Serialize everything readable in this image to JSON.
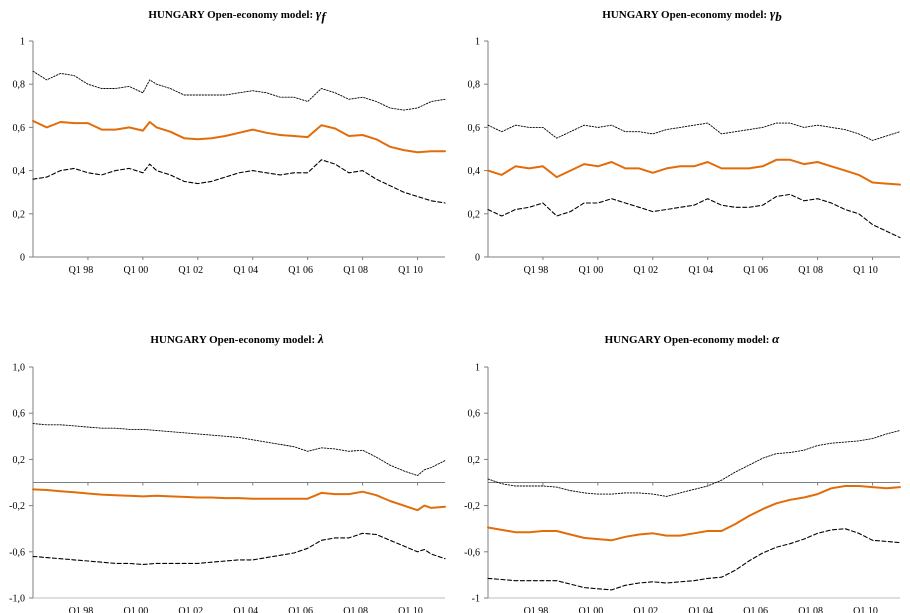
{
  "colors": {
    "central": "#E36C0A",
    "bands": "#000000",
    "axis": "#7F7F7F"
  },
  "chart_data": [
    {
      "type": "line",
      "title": "HUNGARY Open-economy model: ",
      "title_symbol": "γ",
      "title_subscript": "f",
      "x_tick_labels": [
        "Q1 98",
        "Q1 00",
        "Q1 02",
        "Q1 04",
        "Q1 06",
        "Q1 08",
        "Q1 10"
      ],
      "x_range": [
        1996.0,
        2011.0
      ],
      "x_ticks": [
        1998,
        2000,
        2002,
        2004,
        2006,
        2008,
        2010
      ],
      "y_range": [
        0,
        1
      ],
      "y_ticks": [
        0,
        0.2,
        0.4,
        0.6,
        0.8,
        1
      ],
      "y_tick_labels": [
        "0",
        "0,2",
        "0,4",
        "0,6",
        "0,8",
        "1"
      ],
      "zero_line": false,
      "series": [
        {
          "style": "central",
          "x": [
            1996.0,
            1996.5,
            1997.0,
            1997.5,
            1998.0,
            1998.5,
            1999.0,
            1999.5,
            2000.0,
            2000.25,
            2000.5,
            2001.0,
            2001.5,
            2002.0,
            2002.5,
            2003.0,
            2003.5,
            2004.0,
            2004.5,
            2005.0,
            2005.5,
            2006.0,
            2006.5,
            2007.0,
            2007.5,
            2008.0,
            2008.5,
            2009.0,
            2009.5,
            2010.0,
            2010.5,
            2011.0
          ],
          "y": [
            0.63,
            0.6,
            0.625,
            0.62,
            0.62,
            0.59,
            0.59,
            0.6,
            0.585,
            0.625,
            0.6,
            0.58,
            0.55,
            0.545,
            0.55,
            0.56,
            0.575,
            0.59,
            0.575,
            0.565,
            0.56,
            0.555,
            0.61,
            0.595,
            0.56,
            0.565,
            0.545,
            0.51,
            0.495,
            0.485,
            0.49,
            0.49
          ]
        },
        {
          "style": "upper",
          "x": [
            1996.0,
            1996.5,
            1997.0,
            1997.5,
            1998.0,
            1998.5,
            1999.0,
            1999.5,
            2000.0,
            2000.25,
            2000.5,
            2001.0,
            2001.5,
            2002.0,
            2002.5,
            2003.0,
            2003.5,
            2004.0,
            2004.5,
            2005.0,
            2005.5,
            2006.0,
            2006.5,
            2007.0,
            2007.5,
            2008.0,
            2008.5,
            2009.0,
            2009.5,
            2010.0,
            2010.5,
            2011.0
          ],
          "y": [
            0.86,
            0.82,
            0.85,
            0.84,
            0.8,
            0.78,
            0.78,
            0.79,
            0.76,
            0.82,
            0.8,
            0.78,
            0.75,
            0.75,
            0.75,
            0.75,
            0.76,
            0.77,
            0.76,
            0.74,
            0.74,
            0.72,
            0.78,
            0.76,
            0.73,
            0.74,
            0.72,
            0.69,
            0.68,
            0.69,
            0.72,
            0.73
          ]
        },
        {
          "style": "lower",
          "x": [
            1996.0,
            1996.5,
            1997.0,
            1997.5,
            1998.0,
            1998.5,
            1999.0,
            1999.5,
            2000.0,
            2000.25,
            2000.5,
            2001.0,
            2001.5,
            2002.0,
            2002.5,
            2003.0,
            2003.5,
            2004.0,
            2004.5,
            2005.0,
            2005.5,
            2006.0,
            2006.5,
            2007.0,
            2007.5,
            2008.0,
            2008.5,
            2009.0,
            2009.5,
            2010.0,
            2010.5,
            2011.0
          ],
          "y": [
            0.36,
            0.37,
            0.4,
            0.41,
            0.39,
            0.38,
            0.4,
            0.41,
            0.39,
            0.43,
            0.4,
            0.38,
            0.35,
            0.34,
            0.35,
            0.37,
            0.39,
            0.4,
            0.39,
            0.38,
            0.39,
            0.39,
            0.45,
            0.43,
            0.39,
            0.4,
            0.36,
            0.33,
            0.3,
            0.28,
            0.26,
            0.25
          ]
        }
      ]
    },
    {
      "type": "line",
      "title": "HUNGARY Open-economy model: ",
      "title_symbol": "γ",
      "title_subscript": "b",
      "x_tick_labels": [
        "Q1 98",
        "Q1 00",
        "Q1 02",
        "Q1 04",
        "Q1 06",
        "Q1 08",
        "Q1 10"
      ],
      "x_range": [
        1996.0,
        2011.0
      ],
      "x_ticks": [
        1998,
        2000,
        2002,
        2004,
        2006,
        2008,
        2010
      ],
      "y_range": [
        0,
        1
      ],
      "y_ticks": [
        0,
        0.2,
        0.4,
        0.6,
        0.8,
        1
      ],
      "y_tick_labels": [
        "0",
        "0,2",
        "0,4",
        "0,6",
        "0,8",
        "1"
      ],
      "zero_line": false,
      "series": [
        {
          "style": "central",
          "x": [
            1996.0,
            1996.5,
            1997.0,
            1997.5,
            1998.0,
            1998.5,
            1999.0,
            1999.5,
            2000.0,
            2000.5,
            2001.0,
            2001.5,
            2002.0,
            2002.5,
            2003.0,
            2003.5,
            2004.0,
            2004.5,
            2005.0,
            2005.5,
            2006.0,
            2006.5,
            2007.0,
            2007.5,
            2008.0,
            2008.5,
            2009.0,
            2009.5,
            2010.0,
            2010.5,
            2011.0
          ],
          "y": [
            0.4,
            0.38,
            0.42,
            0.41,
            0.42,
            0.37,
            0.4,
            0.43,
            0.42,
            0.44,
            0.41,
            0.41,
            0.39,
            0.41,
            0.42,
            0.42,
            0.44,
            0.41,
            0.41,
            0.41,
            0.42,
            0.45,
            0.45,
            0.43,
            0.44,
            0.42,
            0.4,
            0.38,
            0.345,
            0.34,
            0.335
          ]
        },
        {
          "style": "upper",
          "x": [
            1996.0,
            1996.5,
            1997.0,
            1997.5,
            1998.0,
            1998.5,
            1999.0,
            1999.5,
            2000.0,
            2000.5,
            2001.0,
            2001.5,
            2002.0,
            2002.5,
            2003.0,
            2003.5,
            2004.0,
            2004.5,
            2005.0,
            2005.5,
            2006.0,
            2006.5,
            2007.0,
            2007.5,
            2008.0,
            2008.5,
            2009.0,
            2009.5,
            2010.0,
            2010.5,
            2011.0
          ],
          "y": [
            0.61,
            0.58,
            0.61,
            0.6,
            0.6,
            0.55,
            0.58,
            0.61,
            0.6,
            0.61,
            0.58,
            0.58,
            0.57,
            0.59,
            0.6,
            0.61,
            0.62,
            0.57,
            0.58,
            0.59,
            0.6,
            0.62,
            0.62,
            0.6,
            0.61,
            0.6,
            0.59,
            0.57,
            0.54,
            0.56,
            0.58
          ]
        },
        {
          "style": "lower",
          "x": [
            1996.0,
            1996.5,
            1997.0,
            1997.5,
            1998.0,
            1998.5,
            1999.0,
            1999.5,
            2000.0,
            2000.5,
            2001.0,
            2001.5,
            2002.0,
            2002.5,
            2003.0,
            2003.5,
            2004.0,
            2004.5,
            2005.0,
            2005.5,
            2006.0,
            2006.5,
            2007.0,
            2007.5,
            2008.0,
            2008.5,
            2009.0,
            2009.5,
            2010.0,
            2010.5,
            2011.0
          ],
          "y": [
            0.22,
            0.19,
            0.22,
            0.23,
            0.25,
            0.19,
            0.21,
            0.25,
            0.25,
            0.27,
            0.25,
            0.23,
            0.21,
            0.22,
            0.23,
            0.24,
            0.27,
            0.24,
            0.23,
            0.23,
            0.24,
            0.28,
            0.29,
            0.26,
            0.27,
            0.25,
            0.22,
            0.2,
            0.15,
            0.12,
            0.09
          ]
        }
      ]
    },
    {
      "type": "line",
      "title": "HUNGARY Open-economy model: ",
      "title_symbol": "λ",
      "title_subscript": "",
      "x_tick_labels": [
        "Q1 98",
        "Q1 00",
        "Q1 02",
        "Q1 04",
        "Q1 06",
        "Q1 08",
        "Q1 10"
      ],
      "x_range": [
        1996.0,
        2011.0
      ],
      "x_ticks": [
        1998,
        2000,
        2002,
        2004,
        2006,
        2008,
        2010
      ],
      "y_range": [
        -1,
        1
      ],
      "y_ticks": [
        -1,
        -0.6,
        -0.2,
        0.2,
        0.6,
        1
      ],
      "y_tick_labels": [
        "-1,0",
        "-0,6",
        "-0,2",
        "0,2",
        "0,6",
        "1,0"
      ],
      "zero_line": true,
      "series": [
        {
          "style": "central",
          "x": [
            1996.0,
            1996.5,
            1997.0,
            1997.5,
            1998.0,
            1998.5,
            1999.0,
            1999.5,
            2000.0,
            2000.5,
            2001.0,
            2001.5,
            2002.0,
            2002.5,
            2003.0,
            2003.5,
            2004.0,
            2004.5,
            2005.0,
            2005.5,
            2006.0,
            2006.5,
            2007.0,
            2007.5,
            2008.0,
            2008.5,
            2009.0,
            2009.5,
            2010.0,
            2010.25,
            2010.5,
            2011.0
          ],
          "y": [
            -0.06,
            -0.065,
            -0.075,
            -0.085,
            -0.095,
            -0.105,
            -0.11,
            -0.115,
            -0.12,
            -0.115,
            -0.12,
            -0.125,
            -0.13,
            -0.13,
            -0.135,
            -0.135,
            -0.14,
            -0.14,
            -0.14,
            -0.14,
            -0.14,
            -0.09,
            -0.1,
            -0.1,
            -0.08,
            -0.11,
            -0.16,
            -0.2,
            -0.24,
            -0.2,
            -0.22,
            -0.21
          ]
        },
        {
          "style": "upper",
          "x": [
            1996.0,
            1996.5,
            1997.0,
            1997.5,
            1998.0,
            1998.5,
            1999.0,
            1999.5,
            2000.0,
            2000.5,
            2001.0,
            2001.5,
            2002.0,
            2002.5,
            2003.0,
            2003.5,
            2004.0,
            2004.5,
            2005.0,
            2005.5,
            2006.0,
            2006.5,
            2007.0,
            2007.5,
            2008.0,
            2008.5,
            2009.0,
            2009.5,
            2010.0,
            2010.25,
            2010.5,
            2011.0
          ],
          "y": [
            0.51,
            0.5,
            0.5,
            0.49,
            0.48,
            0.47,
            0.47,
            0.46,
            0.46,
            0.45,
            0.44,
            0.43,
            0.42,
            0.41,
            0.4,
            0.39,
            0.37,
            0.35,
            0.33,
            0.31,
            0.27,
            0.3,
            0.29,
            0.27,
            0.28,
            0.22,
            0.15,
            0.1,
            0.06,
            0.11,
            0.13,
            0.19
          ]
        },
        {
          "style": "lower",
          "x": [
            1996.0,
            1996.5,
            1997.0,
            1997.5,
            1998.0,
            1998.5,
            1999.0,
            1999.5,
            2000.0,
            2000.5,
            2001.0,
            2001.5,
            2002.0,
            2002.5,
            2003.0,
            2003.5,
            2004.0,
            2004.5,
            2005.0,
            2005.5,
            2006.0,
            2006.5,
            2007.0,
            2007.5,
            2008.0,
            2008.5,
            2009.0,
            2009.5,
            2010.0,
            2010.25,
            2010.5,
            2011.0
          ],
          "y": [
            -0.64,
            -0.65,
            -0.66,
            -0.67,
            -0.68,
            -0.69,
            -0.7,
            -0.7,
            -0.71,
            -0.7,
            -0.7,
            -0.7,
            -0.7,
            -0.69,
            -0.68,
            -0.67,
            -0.67,
            -0.65,
            -0.63,
            -0.61,
            -0.57,
            -0.5,
            -0.48,
            -0.48,
            -0.44,
            -0.45,
            -0.5,
            -0.55,
            -0.6,
            -0.58,
            -0.62,
            -0.66
          ]
        }
      ]
    },
    {
      "type": "line",
      "title": "HUNGARY Open-economy model: ",
      "title_symbol": "α",
      "title_subscript": "",
      "x_tick_labels": [
        "Q1 98",
        "Q1 00",
        "Q1 02",
        "Q1 04",
        "Q1 06",
        "Q1 08",
        "Q1 10"
      ],
      "x_range": [
        1996.0,
        2011.0
      ],
      "x_ticks": [
        1998,
        2000,
        2002,
        2004,
        2006,
        2008,
        2010
      ],
      "y_range": [
        -1,
        1
      ],
      "y_ticks": [
        -1,
        -0.6,
        -0.2,
        0.2,
        0.6,
        1
      ],
      "y_tick_labels": [
        "-1",
        "-0,6",
        "-0,2",
        "0,2",
        "0,6",
        "1"
      ],
      "zero_line": true,
      "series": [
        {
          "style": "central",
          "x": [
            1996.0,
            1996.5,
            1997.0,
            1997.5,
            1998.0,
            1998.5,
            1999.0,
            1999.5,
            2000.0,
            2000.5,
            2001.0,
            2001.5,
            2002.0,
            2002.5,
            2003.0,
            2003.5,
            2004.0,
            2004.5,
            2005.0,
            2005.5,
            2006.0,
            2006.5,
            2007.0,
            2007.5,
            2008.0,
            2008.5,
            2009.0,
            2009.5,
            2010.0,
            2010.5,
            2011.0
          ],
          "y": [
            -0.39,
            -0.41,
            -0.43,
            -0.43,
            -0.42,
            -0.42,
            -0.45,
            -0.48,
            -0.49,
            -0.5,
            -0.47,
            -0.45,
            -0.44,
            -0.46,
            -0.46,
            -0.44,
            -0.42,
            -0.42,
            -0.36,
            -0.29,
            -0.23,
            -0.18,
            -0.15,
            -0.13,
            -0.1,
            -0.05,
            -0.03,
            -0.03,
            -0.04,
            -0.05,
            -0.04
          ]
        },
        {
          "style": "upper",
          "x": [
            1996.0,
            1996.5,
            1997.0,
            1997.5,
            1998.0,
            1998.5,
            1999.0,
            1999.5,
            2000.0,
            2000.5,
            2001.0,
            2001.5,
            2002.0,
            2002.5,
            2003.0,
            2003.5,
            2004.0,
            2004.5,
            2005.0,
            2005.5,
            2006.0,
            2006.5,
            2007.0,
            2007.5,
            2008.0,
            2008.5,
            2009.0,
            2009.5,
            2010.0,
            2010.5,
            2011.0
          ],
          "y": [
            0.03,
            -0.01,
            -0.03,
            -0.03,
            -0.03,
            -0.04,
            -0.07,
            -0.09,
            -0.1,
            -0.1,
            -0.09,
            -0.09,
            -0.1,
            -0.12,
            -0.09,
            -0.06,
            -0.03,
            0.02,
            0.09,
            0.15,
            0.21,
            0.25,
            0.26,
            0.28,
            0.32,
            0.34,
            0.35,
            0.36,
            0.38,
            0.42,
            0.45
          ]
        },
        {
          "style": "lower",
          "x": [
            1996.0,
            1996.5,
            1997.0,
            1997.5,
            1998.0,
            1998.5,
            1999.0,
            1999.5,
            2000.0,
            2000.5,
            2001.0,
            2001.5,
            2002.0,
            2002.5,
            2003.0,
            2003.5,
            2004.0,
            2004.5,
            2005.0,
            2005.5,
            2006.0,
            2006.5,
            2007.0,
            2007.5,
            2008.0,
            2008.5,
            2009.0,
            2009.5,
            2010.0,
            2010.5,
            2011.0
          ],
          "y": [
            -0.83,
            -0.84,
            -0.85,
            -0.85,
            -0.85,
            -0.85,
            -0.88,
            -0.91,
            -0.92,
            -0.93,
            -0.89,
            -0.87,
            -0.86,
            -0.87,
            -0.86,
            -0.85,
            -0.83,
            -0.82,
            -0.76,
            -0.68,
            -0.61,
            -0.56,
            -0.53,
            -0.49,
            -0.44,
            -0.41,
            -0.4,
            -0.44,
            -0.5,
            -0.51,
            -0.52
          ]
        }
      ]
    }
  ]
}
